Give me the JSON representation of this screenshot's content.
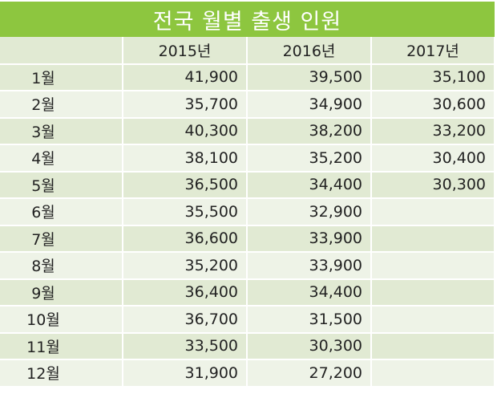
{
  "chart_data": {
    "type": "table",
    "title": "전국 월별 출생 인원",
    "columns": [
      "",
      "2015년",
      "2016년",
      "2017년"
    ],
    "rows": [
      {
        "month": "1월",
        "values": [
          "41,900",
          "39,500",
          "35,100"
        ]
      },
      {
        "month": "2월",
        "values": [
          "35,700",
          "34,900",
          "30,600"
        ]
      },
      {
        "month": "3월",
        "values": [
          "40,300",
          "38,200",
          "33,200"
        ]
      },
      {
        "month": "4월",
        "values": [
          "38,100",
          "35,200",
          "30,400"
        ]
      },
      {
        "month": "5월",
        "values": [
          "36,500",
          "34,400",
          "30,300"
        ]
      },
      {
        "month": "6월",
        "values": [
          "35,500",
          "32,900",
          ""
        ]
      },
      {
        "month": "7월",
        "values": [
          "36,600",
          "33,900",
          ""
        ]
      },
      {
        "month": "8월",
        "values": [
          "35,200",
          "33,900",
          ""
        ]
      },
      {
        "month": "9월",
        "values": [
          "36,400",
          "34,400",
          ""
        ]
      },
      {
        "month": "10월",
        "values": [
          "36,700",
          "31,500",
          ""
        ]
      },
      {
        "month": "11월",
        "values": [
          "33,500",
          "30,300",
          ""
        ]
      },
      {
        "month": "12월",
        "values": [
          "31,900",
          "27,200",
          ""
        ]
      }
    ]
  },
  "colors": {
    "header_bg": "#8dc63f",
    "row_dark": "#e1ead3",
    "row_light": "#eef3e7"
  }
}
